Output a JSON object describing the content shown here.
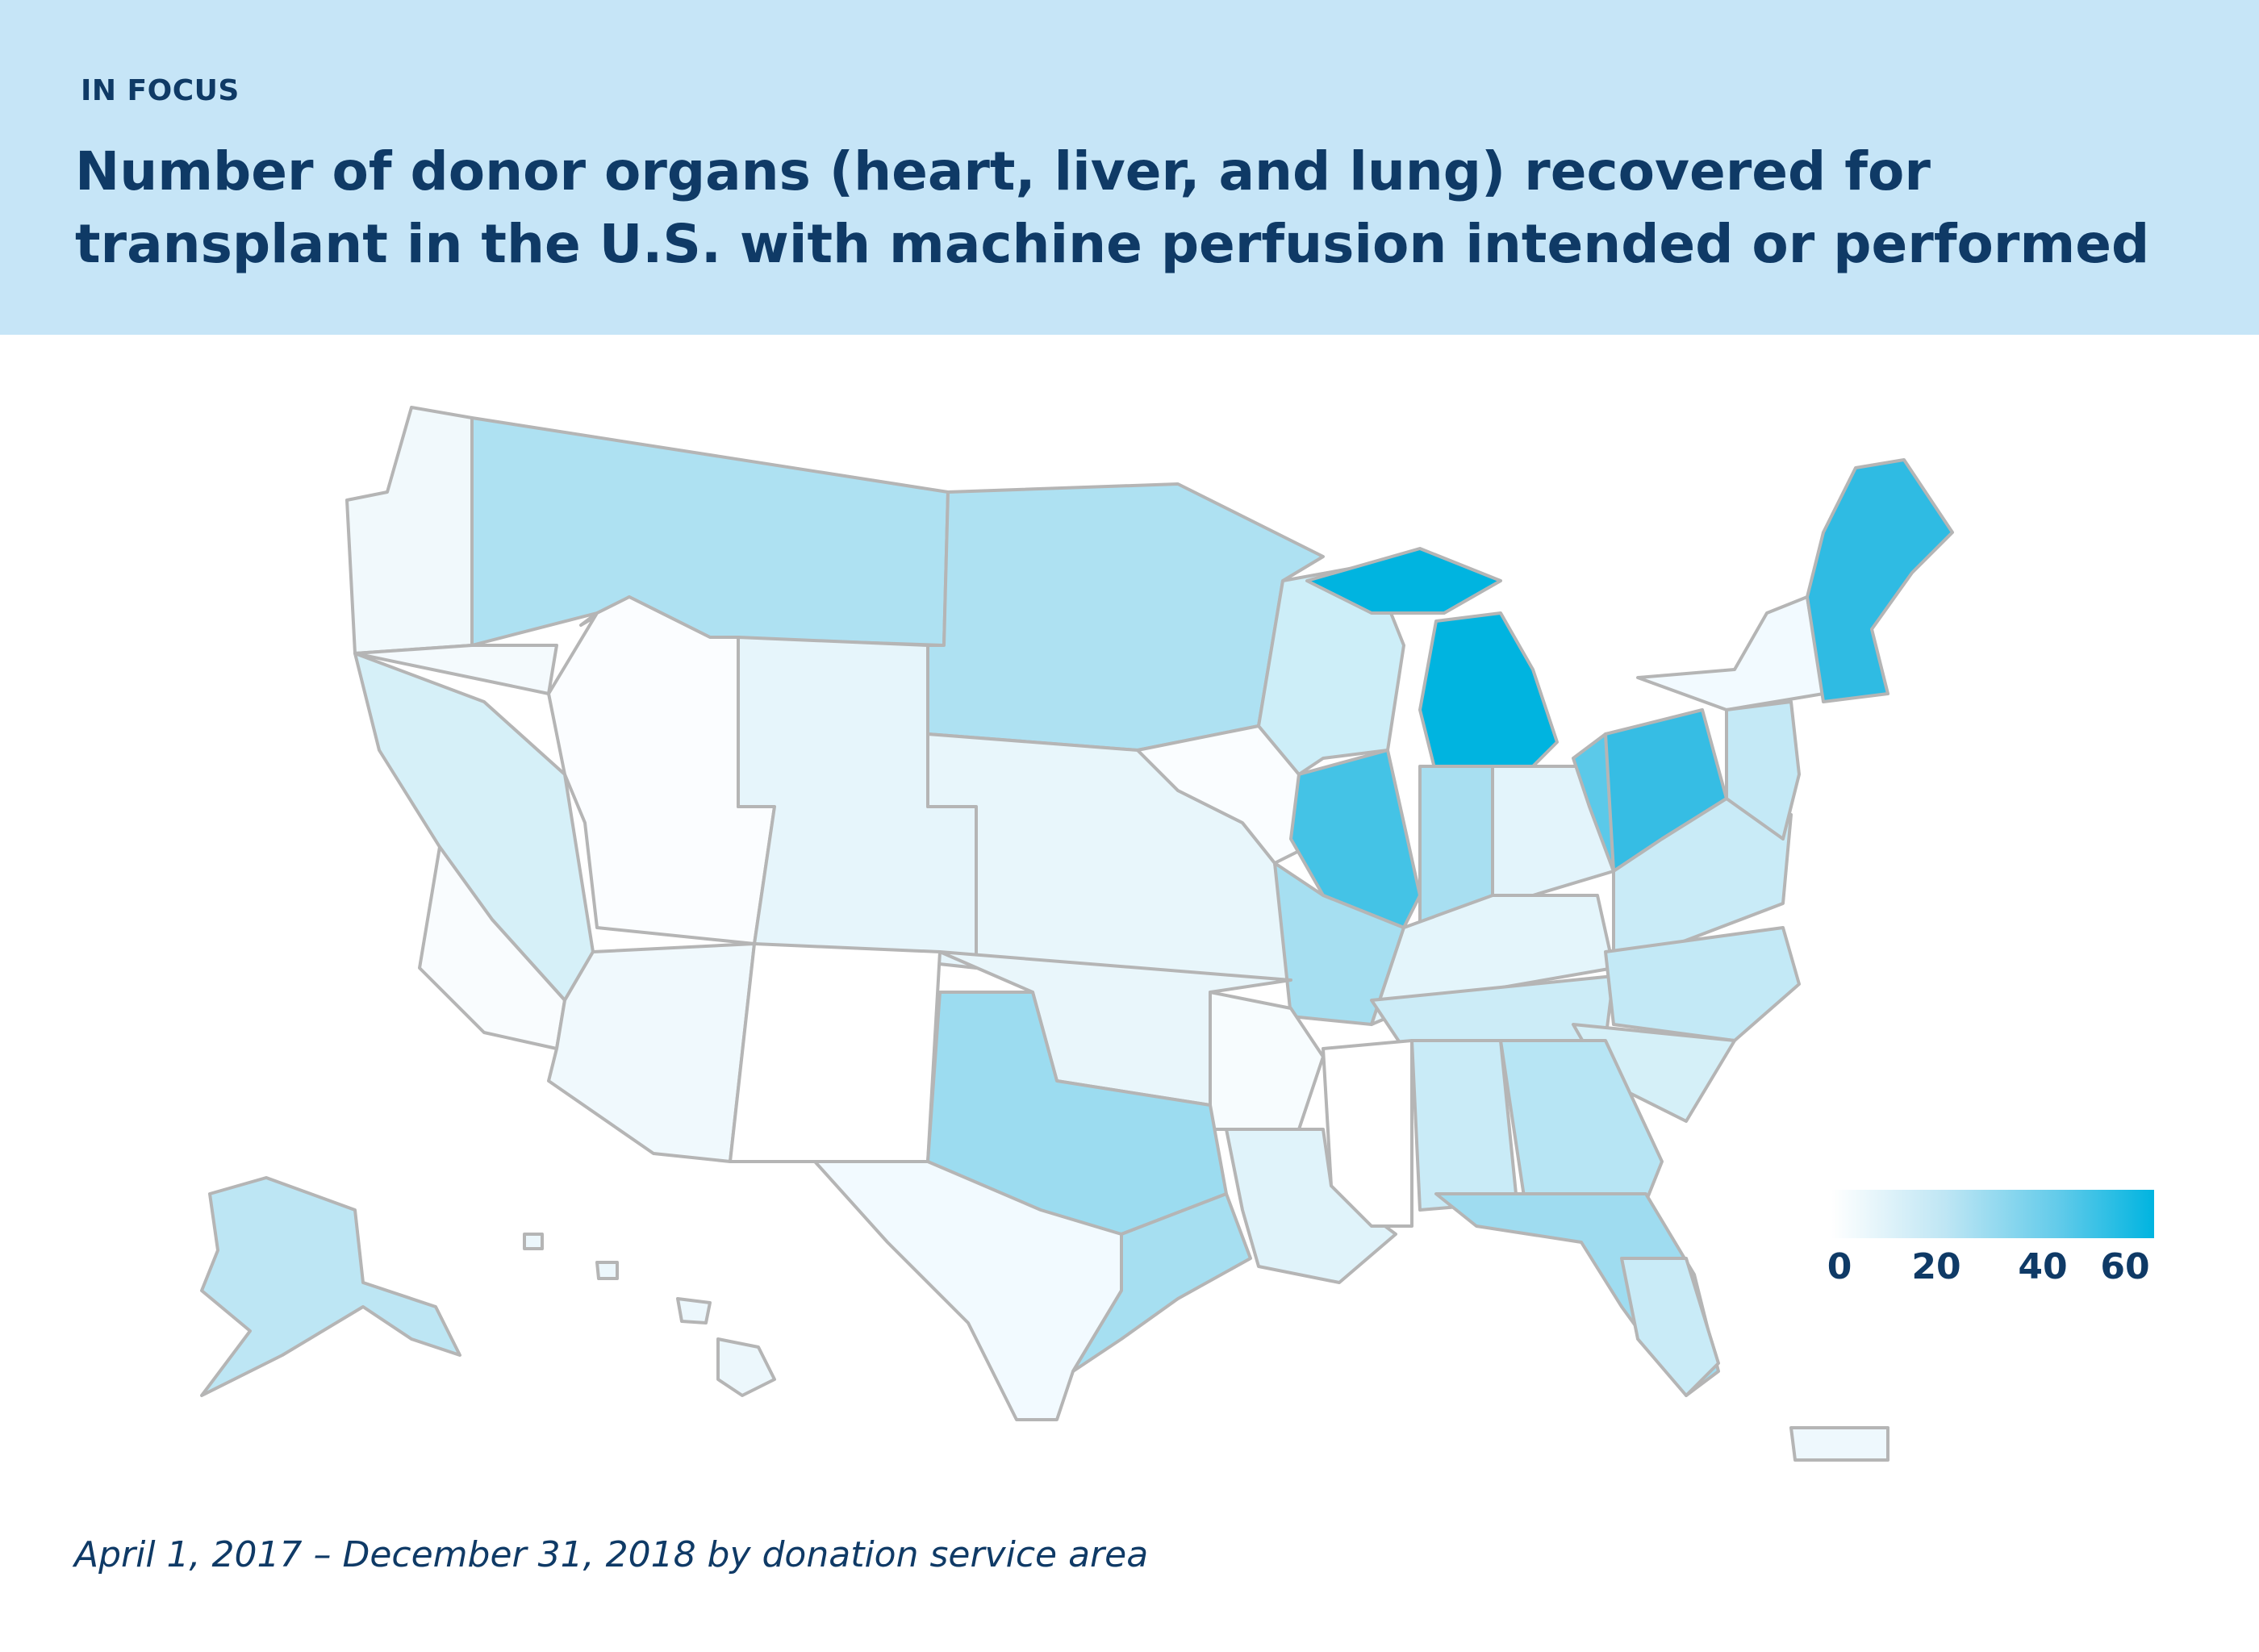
{
  "header": {
    "kicker": "IN FOCUS",
    "title": "Number of donor organs (heart, liver, and lung) recovered for transplant in the U.S. with machine perfusion intended or performed"
  },
  "legend": {
    "ticks": [
      "0",
      "20",
      "40",
      "60"
    ],
    "color_min": "#ffffff",
    "color_max": "#00b4e0"
  },
  "footnote": "April 1, 2017 – December 31, 2018 by donation service area",
  "colors": {
    "header_bg": "#c6e5f7",
    "text": "#0f3a66",
    "border": "#b5b5b5"
  }
}
